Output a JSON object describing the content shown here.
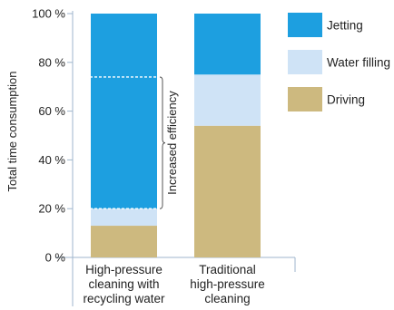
{
  "chart_data": {
    "type": "bar",
    "stacked": true,
    "categories": [
      [
        "High-pressure",
        "cleaning with",
        "recycling water"
      ],
      [
        "Traditional",
        "high-pressure",
        "cleaning"
      ]
    ],
    "series": [
      {
        "name": "Driving",
        "color": "#cdb97f",
        "values": [
          13,
          54
        ]
      },
      {
        "name": "Water filling",
        "color": "#cfe3f6",
        "values": [
          7,
          21
        ]
      },
      {
        "name": "Jetting",
        "color": "#1d9fe0",
        "values": [
          80,
          25
        ]
      }
    ],
    "ylabel": "Total time consumption",
    "ylim": [
      0,
      100
    ],
    "yticks": [
      0,
      20,
      40,
      60,
      80,
      100
    ],
    "tick_suffix": " %",
    "legend_order": [
      "Jetting",
      "Water filling",
      "Driving"
    ],
    "legend_position": "right",
    "annotation": {
      "text": "Increased efficiency",
      "from": 20,
      "to": 74
    },
    "grid": false
  }
}
